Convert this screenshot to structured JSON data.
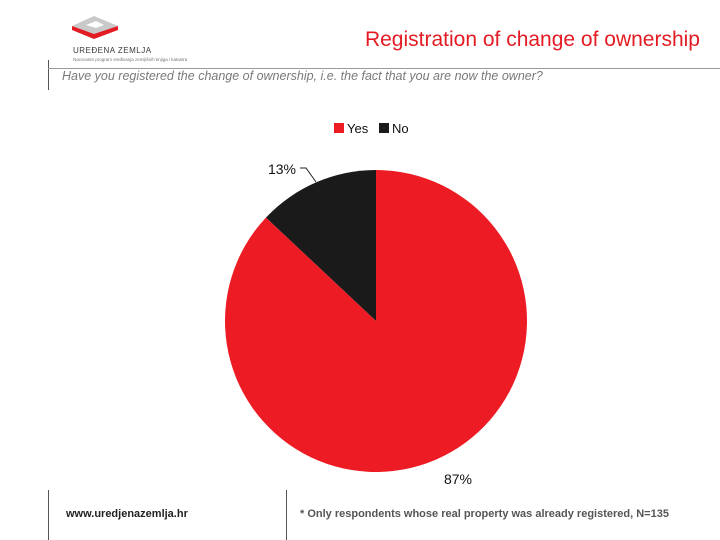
{
  "logo": {
    "name": "UREĐENA ZEMLJA",
    "tagline": "Nacionalni program sređivanja zemljišnih knjiga i katastra"
  },
  "header": {
    "title": "Registration of change of ownership"
  },
  "question": "Have you registered the change of ownership, i.e. the fact that you are now the owner?",
  "footer": {
    "url": "www.uredjenazemlja.hr",
    "note": "* Only respondents whose real property was already registered, N=135"
  },
  "colors": {
    "accent": "#e31c24",
    "yes": "#ed1c24",
    "no": "#1a1a1a"
  },
  "chart_data": {
    "type": "pie",
    "title": "",
    "legend_position": "top",
    "slices": [
      {
        "label": "Yes",
        "value": 87,
        "display": "87%"
      },
      {
        "label": "No",
        "value": 13,
        "display": "13%"
      }
    ]
  }
}
